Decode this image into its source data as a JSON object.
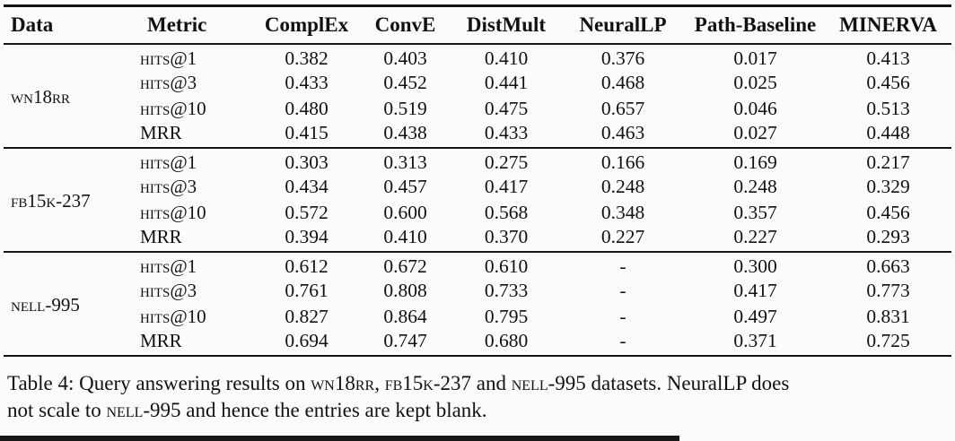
{
  "page": {
    "background": "#fbfbf9",
    "text_color": "#111111",
    "rule_color": "#141414"
  },
  "table": {
    "headers": [
      "Data",
      "Metric",
      "ComplEx",
      "ConvE",
      "DistMult",
      "NeuralLP",
      "Path-Baseline",
      "MINERVA"
    ],
    "groups": [
      {
        "dataset": "wn18rr",
        "rows": [
          {
            "metric": "hits@1",
            "values": [
              "0.382",
              "0.403",
              "0.410",
              "0.376",
              "0.017",
              "0.413"
            ]
          },
          {
            "metric": "hits@3",
            "values": [
              "0.433",
              "0.452",
              "0.441",
              "0.468",
              "0.025",
              "0.456"
            ]
          },
          {
            "metric": "hits@10",
            "values": [
              "0.480",
              "0.519",
              "0.475",
              "0.657",
              "0.046",
              "0.513"
            ]
          },
          {
            "metric": "MRR",
            "values": [
              "0.415",
              "0.438",
              "0.433",
              "0.463",
              "0.027",
              "0.448"
            ]
          }
        ]
      },
      {
        "dataset": "fb15k-237",
        "rows": [
          {
            "metric": "hits@1",
            "values": [
              "0.303",
              "0.313",
              "0.275",
              "0.166",
              "0.169",
              "0.217"
            ]
          },
          {
            "metric": "hits@3",
            "values": [
              "0.434",
              "0.457",
              "0.417",
              "0.248",
              "0.248",
              "0.329"
            ]
          },
          {
            "metric": "hits@10",
            "values": [
              "0.572",
              "0.600",
              "0.568",
              "0.348",
              "0.357",
              "0.456"
            ]
          },
          {
            "metric": "MRR",
            "values": [
              "0.394",
              "0.410",
              "0.370",
              "0.227",
              "0.227",
              "0.293"
            ]
          }
        ]
      },
      {
        "dataset": "nell-995",
        "rows": [
          {
            "metric": "hits@1",
            "values": [
              "0.612",
              "0.672",
              "0.610",
              "-",
              "0.300",
              "0.663"
            ]
          },
          {
            "metric": "hits@3",
            "values": [
              "0.761",
              "0.808",
              "0.733",
              "-",
              "0.417",
              "0.773"
            ]
          },
          {
            "metric": "hits@10",
            "values": [
              "0.827",
              "0.864",
              "0.795",
              "-",
              "0.497",
              "0.831"
            ]
          },
          {
            "metric": "MRR",
            "values": [
              "0.694",
              "0.747",
              "0.680",
              "-",
              "0.371",
              "0.725"
            ]
          }
        ]
      }
    ]
  },
  "caption": {
    "lines": [
      [
        {
          "text": "Table 4: Query answering results on "
        },
        {
          "text": "wn18rr",
          "sc": true
        },
        {
          "text": ", "
        },
        {
          "text": "fb15k-237",
          "sc": true
        },
        {
          "text": " and "
        },
        {
          "text": "nell-995",
          "sc": true
        },
        {
          "text": " datasets. NeuralLP does"
        }
      ],
      [
        {
          "text": "not scale to "
        },
        {
          "text": "nell-995",
          "sc": true
        },
        {
          "text": " and hence the entries are kept blank."
        }
      ]
    ]
  }
}
